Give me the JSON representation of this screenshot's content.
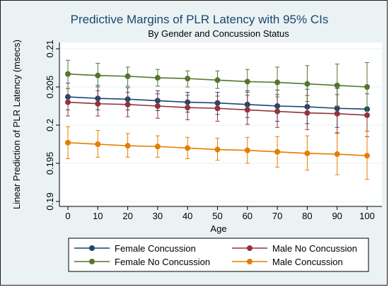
{
  "chart_data": {
    "type": "line",
    "title": "Predictive Margins of PLR Latency with 95% CIs",
    "subtitle": "By Gender and Concussion Status",
    "xlabel": "Age",
    "ylabel": "Linear Prediction of PLR Latency (msecs)",
    "x": [
      0,
      10,
      20,
      30,
      40,
      50,
      60,
      70,
      80,
      90,
      100
    ],
    "xticks": [
      "0",
      "10",
      "20",
      "30",
      "40",
      "50",
      "60",
      "70",
      "80",
      "90",
      "100"
    ],
    "xlim": [
      0,
      100
    ],
    "yticks": [
      "0.19",
      "0.195",
      "0.2",
      "0.205",
      "0.21"
    ],
    "ylim": [
      0.19,
      0.21
    ],
    "grid": true,
    "legend": "bottom",
    "series": [
      {
        "name": "Female Concussion",
        "color": "#1a476f",
        "values": [
          0.2037,
          0.2035,
          0.2034,
          0.2032,
          0.203,
          0.2029,
          0.2027,
          0.2025,
          0.2024,
          0.2022,
          0.2021
        ],
        "lower": [
          0.202,
          0.202,
          0.202,
          0.2019,
          0.2017,
          0.2014,
          0.201,
          0.2005,
          0.2002,
          0.1997,
          0.1992
        ],
        "upper": [
          0.2055,
          0.2052,
          0.2049,
          0.2045,
          0.2043,
          0.2043,
          0.2045,
          0.2046,
          0.2047,
          0.2048,
          0.2049
        ]
      },
      {
        "name": "Male No Concussion",
        "color": "#90353b",
        "values": [
          0.203,
          0.2028,
          0.2027,
          0.2025,
          0.2023,
          0.2022,
          0.202,
          0.2018,
          0.2016,
          0.2015,
          0.2013
        ],
        "lower": [
          0.2012,
          0.2012,
          0.2011,
          0.2009,
          0.2007,
          0.2005,
          0.2001,
          0.1997,
          0.1994,
          0.199,
          0.1985
        ],
        "upper": [
          0.2048,
          0.2045,
          0.2043,
          0.2041,
          0.2039,
          0.2038,
          0.2039,
          0.204,
          0.2039,
          0.204,
          0.2041
        ]
      },
      {
        "name": "Female No Concussion",
        "color": "#55752f",
        "values": [
          0.2067,
          0.2065,
          0.2064,
          0.2062,
          0.2061,
          0.2059,
          0.2057,
          0.2056,
          0.2054,
          0.2052,
          0.205
        ],
        "lower": [
          0.2048,
          0.205,
          0.2051,
          0.2051,
          0.205,
          0.2048,
          0.2043,
          0.2037,
          0.2031,
          0.2025,
          0.2018
        ],
        "upper": [
          0.2085,
          0.2081,
          0.2076,
          0.2073,
          0.2071,
          0.2071,
          0.2073,
          0.2076,
          0.2078,
          0.208,
          0.2082
        ]
      },
      {
        "name": "Male Concussion",
        "color": "#e37e00",
        "values": [
          0.1977,
          0.1975,
          0.1973,
          0.1972,
          0.197,
          0.1968,
          0.1967,
          0.1965,
          0.1963,
          0.1962,
          0.196
        ],
        "lower": [
          0.1956,
          0.1958,
          0.1958,
          0.1958,
          0.1956,
          0.1954,
          0.195,
          0.1945,
          0.1941,
          0.1935,
          0.1929
        ],
        "upper": [
          0.1998,
          0.1993,
          0.1989,
          0.1986,
          0.1984,
          0.1983,
          0.1984,
          0.1985,
          0.1986,
          0.1989,
          0.1992
        ]
      }
    ],
    "legend_order": [
      0,
      1,
      2,
      3
    ]
  }
}
